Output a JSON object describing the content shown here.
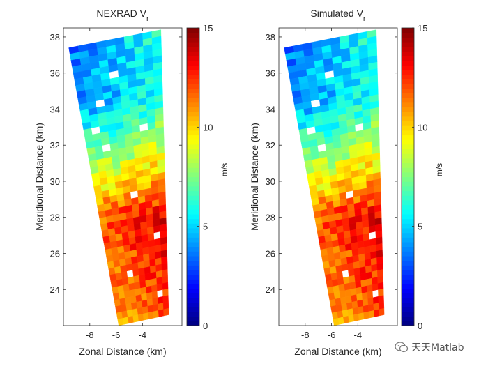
{
  "chart_data": [
    {
      "type": "heatmap",
      "title": "NEXRAD V",
      "title_subscript": "r",
      "xlabel": "Zonal Distance (km)",
      "ylabel": "Meridional Distance (km)",
      "xlim": [
        -10,
        -1
      ],
      "ylim": [
        22,
        38.5
      ],
      "xticks": [
        -8,
        -6,
        -4
      ],
      "yticks": [
        24,
        26,
        28,
        30,
        32,
        34,
        36,
        38
      ],
      "wedge": {
        "top_edge": [
          [
            -9.6,
            37.4
          ],
          [
            -2.6,
            38.4
          ]
        ],
        "bottom_edge": [
          [
            -5.8,
            22.0
          ],
          [
            -2.0,
            22.6
          ]
        ]
      },
      "field_description": "radial velocity increasing from ~5 m/s in the north (top) to ~12 m/s in the south-east",
      "colorbar": {
        "label": "m/s",
        "range": [
          0,
          15
        ],
        "ticks": [
          0,
          5,
          10,
          15
        ],
        "colormap": "jet"
      }
    },
    {
      "type": "heatmap",
      "title": "Simulated V",
      "title_subscript": "r",
      "xlabel": "Zonal Distance (km)",
      "ylabel": "Meridional Distance (km)",
      "xlim": [
        -10,
        -1
      ],
      "ylim": [
        22,
        38.5
      ],
      "xticks": [
        -8,
        -6,
        -4
      ],
      "yticks": [
        24,
        26,
        28,
        30,
        32,
        34,
        36,
        38
      ],
      "wedge": {
        "top_edge": [
          [
            -9.6,
            37.4
          ],
          [
            -2.6,
            38.4
          ]
        ],
        "bottom_edge": [
          [
            -5.8,
            22.0
          ],
          [
            -2.0,
            22.6
          ]
        ]
      },
      "field_description": "radial velocity increasing from ~5 m/s in the north (top) to ~12 m/s in the south-east",
      "colorbar": {
        "label": "m/s",
        "range": [
          0,
          15
        ],
        "ticks": [
          0,
          5,
          10,
          15
        ],
        "colormap": "jet"
      }
    }
  ],
  "watermark": {
    "text": "天天Matlab",
    "icon": "wechat-icon"
  }
}
